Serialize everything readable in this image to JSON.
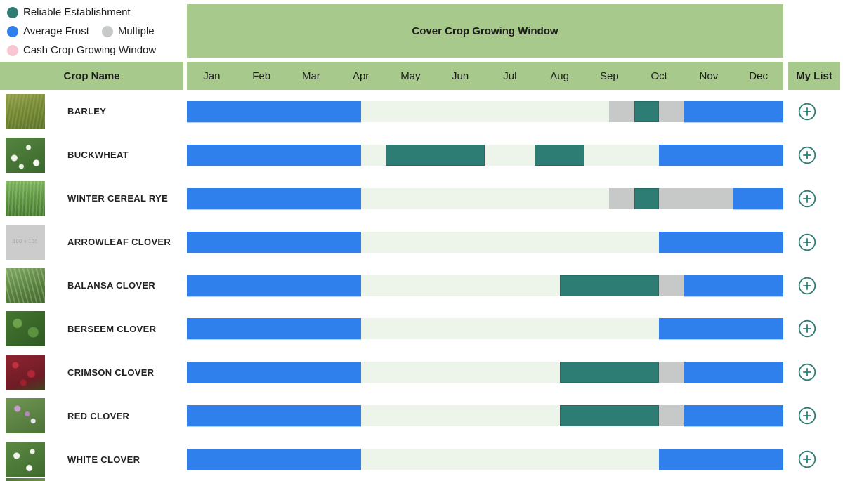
{
  "colors": {
    "reliable": "#2E7D74",
    "frost": "#2F80ED",
    "multiple": "#C6C9C7",
    "cash": "#F9C7D4",
    "window": "#EDF5EB",
    "header_green": "#A7C98B",
    "add_button": "#2E7D74",
    "text": "#1D1D1D"
  },
  "legend": {
    "items": [
      {
        "label": "Reliable Establishment",
        "color_key": "reliable"
      },
      {
        "label": "Average Frost",
        "color_key": "frost"
      },
      {
        "label": "Multiple",
        "color_key": "multiple"
      },
      {
        "label": "Cash Crop Growing Window",
        "color_key": "cash"
      }
    ]
  },
  "header": {
    "timeline_title": "Cover Crop Growing Window",
    "crop_name_label": "Crop Name",
    "my_list_label": "My List",
    "months": [
      "Jan",
      "Feb",
      "Mar",
      "Apr",
      "May",
      "Jun",
      "Jul",
      "Aug",
      "Sep",
      "Oct",
      "Nov",
      "Dec"
    ]
  },
  "chart_data": {
    "type": "heatmap",
    "note": "Gantt-style growing-window timeline; segment start/end are in months from Jan 1 (0-12), types map to legend colors",
    "x": [
      "Jan",
      "Feb",
      "Mar",
      "Apr",
      "May",
      "Jun",
      "Jul",
      "Aug",
      "Sep",
      "Oct",
      "Nov",
      "Dec"
    ]
  },
  "rows": [
    {
      "name": "BARLEY",
      "thumb": "barley",
      "segments": [
        {
          "type": "frost",
          "start": 0,
          "end": 3.5
        },
        {
          "type": "window",
          "start": 3.5,
          "end": 8.5
        },
        {
          "type": "multiple",
          "start": 8.5,
          "end": 9
        },
        {
          "type": "reliable",
          "start": 9,
          "end": 9.5
        },
        {
          "type": "multiple",
          "start": 9.5,
          "end": 10
        },
        {
          "type": "frost",
          "start": 10,
          "end": 12
        }
      ]
    },
    {
      "name": "BUCKWHEAT",
      "thumb": "buckwheat",
      "segments": [
        {
          "type": "frost",
          "start": 0,
          "end": 3.5
        },
        {
          "type": "window",
          "start": 3.5,
          "end": 4
        },
        {
          "type": "reliable",
          "start": 4,
          "end": 6
        },
        {
          "type": "window",
          "start": 6,
          "end": 7
        },
        {
          "type": "reliable",
          "start": 7,
          "end": 8
        },
        {
          "type": "window",
          "start": 8,
          "end": 9.5
        },
        {
          "type": "frost",
          "start": 9.5,
          "end": 12
        }
      ]
    },
    {
      "name": "WINTER CEREAL RYE",
      "thumb": "rye",
      "segments": [
        {
          "type": "frost",
          "start": 0,
          "end": 3.5
        },
        {
          "type": "window",
          "start": 3.5,
          "end": 8.5
        },
        {
          "type": "multiple",
          "start": 8.5,
          "end": 9
        },
        {
          "type": "reliable",
          "start": 9,
          "end": 9.5
        },
        {
          "type": "multiple",
          "start": 9.5,
          "end": 11
        },
        {
          "type": "frost",
          "start": 11,
          "end": 12
        }
      ]
    },
    {
      "name": "ARROWLEAF CLOVER",
      "thumb": "placeholder",
      "thumb_placeholder_text": "100 x 100",
      "segments": [
        {
          "type": "frost",
          "start": 0,
          "end": 3.5
        },
        {
          "type": "window",
          "start": 3.5,
          "end": 9.5
        },
        {
          "type": "frost",
          "start": 9.5,
          "end": 12
        }
      ]
    },
    {
      "name": "BALANSA CLOVER",
      "thumb": "balansa",
      "segments": [
        {
          "type": "frost",
          "start": 0,
          "end": 3.5
        },
        {
          "type": "window",
          "start": 3.5,
          "end": 7.5
        },
        {
          "type": "reliable",
          "start": 7.5,
          "end": 9.5
        },
        {
          "type": "multiple",
          "start": 9.5,
          "end": 10
        },
        {
          "type": "frost",
          "start": 10,
          "end": 12
        }
      ]
    },
    {
      "name": "BERSEEM CLOVER",
      "thumb": "berseem",
      "segments": [
        {
          "type": "frost",
          "start": 0,
          "end": 3.5
        },
        {
          "type": "window",
          "start": 3.5,
          "end": 9.5
        },
        {
          "type": "frost",
          "start": 9.5,
          "end": 12
        }
      ]
    },
    {
      "name": "CRIMSON CLOVER",
      "thumb": "crimson",
      "segments": [
        {
          "type": "frost",
          "start": 0,
          "end": 3.5
        },
        {
          "type": "window",
          "start": 3.5,
          "end": 7.5
        },
        {
          "type": "reliable",
          "start": 7.5,
          "end": 9.5
        },
        {
          "type": "multiple",
          "start": 9.5,
          "end": 10
        },
        {
          "type": "frost",
          "start": 10,
          "end": 12
        }
      ]
    },
    {
      "name": "RED CLOVER",
      "thumb": "red",
      "segments": [
        {
          "type": "frost",
          "start": 0,
          "end": 3.5
        },
        {
          "type": "window",
          "start": 3.5,
          "end": 7.5
        },
        {
          "type": "reliable",
          "start": 7.5,
          "end": 9.5
        },
        {
          "type": "multiple",
          "start": 9.5,
          "end": 10
        },
        {
          "type": "frost",
          "start": 10,
          "end": 12
        }
      ]
    },
    {
      "name": "WHITE CLOVER",
      "thumb": "white",
      "segments": [
        {
          "type": "frost",
          "start": 0,
          "end": 3.5
        },
        {
          "type": "window",
          "start": 3.5,
          "end": 9.5
        },
        {
          "type": "frost",
          "start": 9.5,
          "end": 12
        }
      ]
    }
  ]
}
